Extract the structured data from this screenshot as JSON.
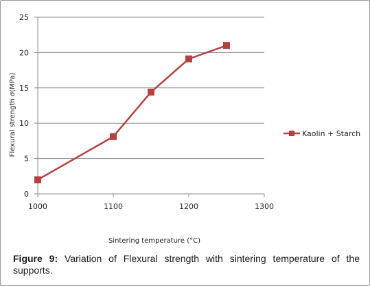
{
  "chart_data": {
    "type": "line",
    "xlabel": "Sintering temperature (°C)",
    "ylabel": "Flexural strength σ(MPa)",
    "xlim": [
      1000,
      1300
    ],
    "ylim": [
      0,
      25
    ],
    "xticks": [
      1000,
      1100,
      1200,
      1300
    ],
    "yticks": [
      0,
      5,
      10,
      15,
      20,
      25
    ],
    "grid": "horizontal",
    "legend": "right",
    "series": [
      {
        "name": "Kaolin + Starch",
        "color": "#b5413e",
        "marker": "square",
        "x": [
          1000,
          1100,
          1150,
          1200,
          1250
        ],
        "y": [
          2,
          8.1,
          14.4,
          19.1,
          21
        ]
      }
    ]
  },
  "caption": {
    "label": "Figure 9:",
    "text": " Variation of Flexural strength with sintering temperature of the supports."
  }
}
